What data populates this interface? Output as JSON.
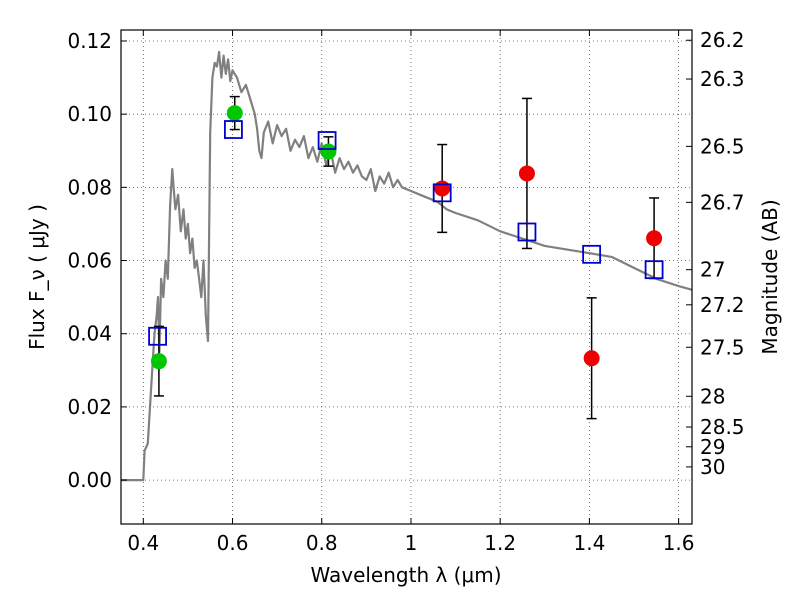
{
  "chart_data": {
    "type": "scatter",
    "title": "",
    "xlabel": "Wavelength  λ (μm)",
    "ylabel": "Flux  F_ν  ( μJy )",
    "y2label": "Magnitude (AB)",
    "xlim": [
      0.35,
      1.63
    ],
    "ylim": [
      -0.012,
      0.123
    ],
    "grid": true,
    "x_ticks": [
      0.4,
      0.6,
      0.8,
      1.0,
      1.2,
      1.4,
      1.6
    ],
    "x_tick_labels": [
      "0.4",
      "0.6",
      "0.8",
      "1",
      "1.2",
      "1.4",
      "1.6"
    ],
    "y_ticks": [
      0.0,
      0.02,
      0.04,
      0.06,
      0.08,
      0.1,
      0.12
    ],
    "y_tick_labels": [
      "0.00",
      "0.02",
      "0.04",
      "0.06",
      "0.08",
      "0.10",
      "0.12"
    ],
    "y2_ticks": [
      {
        "label": "26.2",
        "flux": 0.1202
      },
      {
        "label": "26.3",
        "flux": 0.1096
      },
      {
        "label": "26.5",
        "flux": 0.0912
      },
      {
        "label": "26.7",
        "flux": 0.0759
      },
      {
        "label": "27",
        "flux": 0.0575
      },
      {
        "label": "27.2",
        "flux": 0.0479
      },
      {
        "label": "27.5",
        "flux": 0.0363
      },
      {
        "label": "28",
        "flux": 0.0229
      },
      {
        "label": "28.5",
        "flux": 0.0145
      },
      {
        "label": "29",
        "flux": 0.0091
      },
      {
        "label": "30",
        "flux": 0.0036
      }
    ],
    "series": [
      {
        "color": "#808080",
        "kind": "line",
        "x": [
          0.35,
          0.4,
          0.403,
          0.41,
          0.415,
          0.42,
          0.425,
          0.43,
          0.433,
          0.436,
          0.44,
          0.445,
          0.45,
          0.455,
          0.46,
          0.465,
          0.468,
          0.472,
          0.478,
          0.484,
          0.49,
          0.495,
          0.5,
          0.505,
          0.51,
          0.515,
          0.52,
          0.525,
          0.53,
          0.535,
          0.54,
          0.545,
          0.55,
          0.555,
          0.56,
          0.565,
          0.57,
          0.575,
          0.58,
          0.585,
          0.59,
          0.595,
          0.6,
          0.61,
          0.62,
          0.63,
          0.64,
          0.65,
          0.655,
          0.66,
          0.665,
          0.67,
          0.68,
          0.69,
          0.7,
          0.71,
          0.72,
          0.73,
          0.74,
          0.75,
          0.76,
          0.77,
          0.78,
          0.79,
          0.8,
          0.81,
          0.82,
          0.83,
          0.84,
          0.85,
          0.86,
          0.87,
          0.88,
          0.89,
          0.9,
          0.91,
          0.92,
          0.93,
          0.94,
          0.95,
          0.96,
          0.97,
          0.98,
          1.0,
          1.02,
          1.04,
          1.06,
          1.08,
          1.1,
          1.15,
          1.2,
          1.25,
          1.3,
          1.35,
          1.4,
          1.45,
          1.5,
          1.55,
          1.6,
          1.63
        ],
        "y": [
          0.0,
          0.0,
          0.008,
          0.01,
          0.02,
          0.03,
          0.04,
          0.045,
          0.05,
          0.035,
          0.055,
          0.05,
          0.06,
          0.055,
          0.075,
          0.085,
          0.08,
          0.074,
          0.078,
          0.068,
          0.074,
          0.066,
          0.07,
          0.062,
          0.066,
          0.058,
          0.06,
          0.055,
          0.05,
          0.06,
          0.045,
          0.038,
          0.095,
          0.11,
          0.114,
          0.113,
          0.117,
          0.11,
          0.116,
          0.111,
          0.115,
          0.109,
          0.112,
          0.11,
          0.106,
          0.108,
          0.104,
          0.1,
          0.096,
          0.09,
          0.088,
          0.095,
          0.098,
          0.092,
          0.097,
          0.094,
          0.096,
          0.09,
          0.093,
          0.091,
          0.094,
          0.088,
          0.091,
          0.087,
          0.092,
          0.086,
          0.09,
          0.084,
          0.088,
          0.085,
          0.087,
          0.084,
          0.086,
          0.083,
          0.082,
          0.085,
          0.079,
          0.083,
          0.081,
          0.084,
          0.08,
          0.082,
          0.08,
          0.079,
          0.078,
          0.077,
          0.076,
          0.074,
          0.073,
          0.071,
          0.068,
          0.066,
          0.064,
          0.063,
          0.062,
          0.061,
          0.058,
          0.055,
          0.053,
          0.052
        ]
      },
      {
        "color": "#00c800",
        "kind": "circle",
        "x": [
          0.435,
          0.605,
          0.815
        ],
        "y": [
          0.0325,
          0.1003,
          0.0898
        ],
        "yerr": [
          0.0095,
          0.0045,
          0.004
        ]
      },
      {
        "color": "#ee0000",
        "kind": "circle",
        "x": [
          1.07,
          1.26,
          1.405,
          1.545
        ],
        "y": [
          0.0797,
          0.0838,
          0.0333,
          0.0661
        ],
        "yerr": [
          0.012,
          0.0205,
          0.0165,
          0.011
        ]
      },
      {
        "color": "#0000cc",
        "kind": "square",
        "x": [
          0.432,
          0.602,
          0.812,
          1.07,
          1.26,
          1.405,
          1.545
        ],
        "y": [
          0.0393,
          0.0958,
          0.0928,
          0.0785,
          0.0678,
          0.0617,
          0.0575
        ]
      }
    ]
  }
}
